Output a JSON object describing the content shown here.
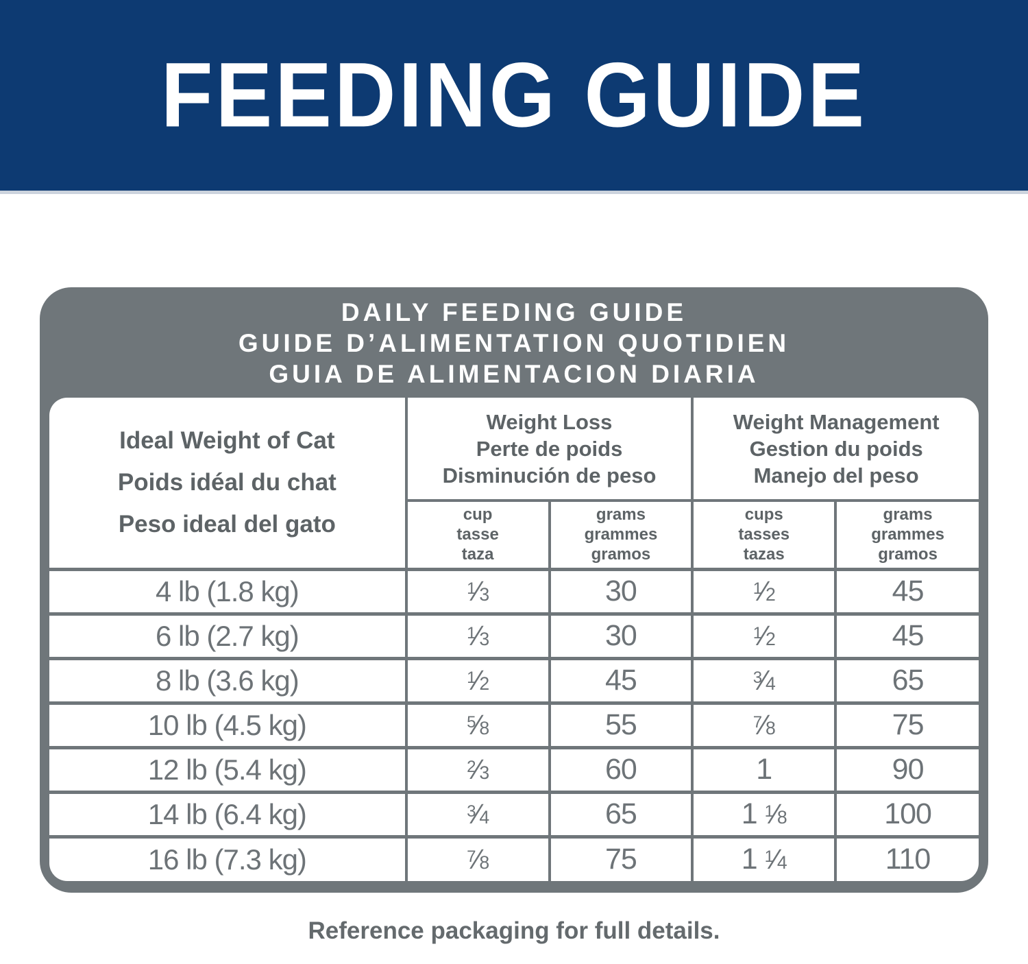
{
  "banner": {
    "title": "FEEDING GUIDE"
  },
  "card": {
    "title_lines": [
      "DAILY FEEDING GUIDE",
      "GUIDE D’ALIMENTATION QUOTIDIEN",
      "GUIA DE ALIMENTACION DIARIA"
    ]
  },
  "table": {
    "row_header": {
      "lines": [
        "Ideal Weight of Cat",
        "Poids idéal du chat",
        "Peso ideal del gato"
      ]
    },
    "groups": [
      {
        "lines": [
          "Weight Loss",
          "Perte de poids",
          "Disminución de peso"
        ],
        "subcolumns": [
          {
            "lines": [
              "cup",
              "tasse",
              "taza"
            ]
          },
          {
            "lines": [
              "grams",
              "grammes",
              "gramos"
            ]
          }
        ]
      },
      {
        "lines": [
          "Weight Management",
          "Gestion du poids",
          "Manejo del peso"
        ],
        "subcolumns": [
          {
            "lines": [
              "cups",
              "tasses",
              "tazas"
            ]
          },
          {
            "lines": [
              "grams",
              "grammes",
              "gramos"
            ]
          }
        ]
      }
    ],
    "rows": [
      {
        "weight": "4 lb (1.8 kg)",
        "values": [
          "1/3",
          "30",
          "1/2",
          "45"
        ]
      },
      {
        "weight": "6 lb (2.7 kg)",
        "values": [
          "1/3",
          "30",
          "1/2",
          "45"
        ]
      },
      {
        "weight": "8 lb (3.6 kg)",
        "values": [
          "1/2",
          "45",
          "3/4",
          "65"
        ]
      },
      {
        "weight": "10 lb (4.5 kg)",
        "values": [
          "5/8",
          "55",
          "7/8",
          "75"
        ]
      },
      {
        "weight": "12 lb (5.4 kg)",
        "values": [
          "2/3",
          "60",
          "1",
          "90"
        ]
      },
      {
        "weight": "14 lb (6.4 kg)",
        "values": [
          "3/4",
          "65",
          "1 1/8",
          "100"
        ]
      },
      {
        "weight": "16 lb (7.3 kg)",
        "values": [
          "7/8",
          "75",
          "1 1/4",
          "110"
        ]
      }
    ]
  },
  "footer": {
    "note": "Reference packaging for full details."
  },
  "colors": {
    "banner_navy": "#0d3a72",
    "card_gray": "#6f767a",
    "header_text": "#5d6366",
    "data_text": "#6d7377",
    "note_text": "#646a6d",
    "banner_underline": "#ccd3dd"
  }
}
